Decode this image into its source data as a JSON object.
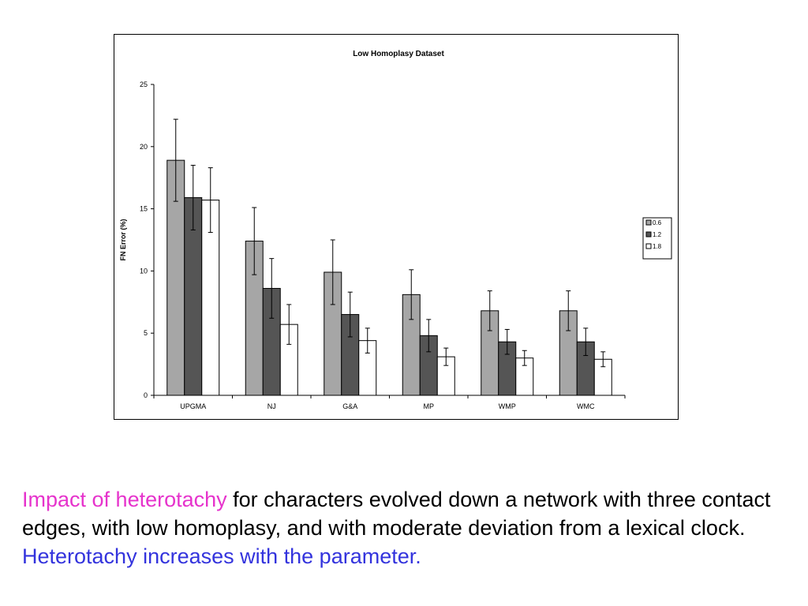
{
  "chart_data": {
    "type": "bar",
    "title": "Low Homoplasy Dataset",
    "xlabel": "",
    "ylabel": "FN Error (%)",
    "ylim": [
      0,
      25
    ],
    "yticks": [
      0,
      5,
      10,
      15,
      20,
      25
    ],
    "categories": [
      "UPGMA",
      "NJ",
      "G&A",
      "MP",
      "WMP",
      "WMC"
    ],
    "series": [
      {
        "name": "0.6",
        "color": "#a6a6a6",
        "values": [
          18.9,
          12.4,
          9.9,
          8.1,
          6.8,
          6.8
        ],
        "error": [
          3.3,
          2.7,
          2.6,
          2.0,
          1.6,
          1.6
        ]
      },
      {
        "name": "1.2",
        "color": "#555555",
        "values": [
          15.9,
          8.6,
          6.5,
          4.8,
          4.3,
          4.3
        ],
        "error": [
          2.6,
          2.4,
          1.8,
          1.3,
          1.0,
          1.1
        ]
      },
      {
        "name": "1.8",
        "color": "#ffffff",
        "values": [
          15.7,
          5.7,
          4.4,
          3.1,
          3.0,
          2.9
        ],
        "error": [
          2.6,
          1.6,
          1.0,
          0.7,
          0.6,
          0.6
        ]
      }
    ],
    "grid": false,
    "legend_position": "right"
  },
  "caption": {
    "highlight": "Impact of heterotachy",
    "body": " for characters evolved down a network with three contact edges, with low homoplasy, and with moderate deviation from a lexical clock.  ",
    "conclusion": "Heterotachy increases with the parameter."
  }
}
